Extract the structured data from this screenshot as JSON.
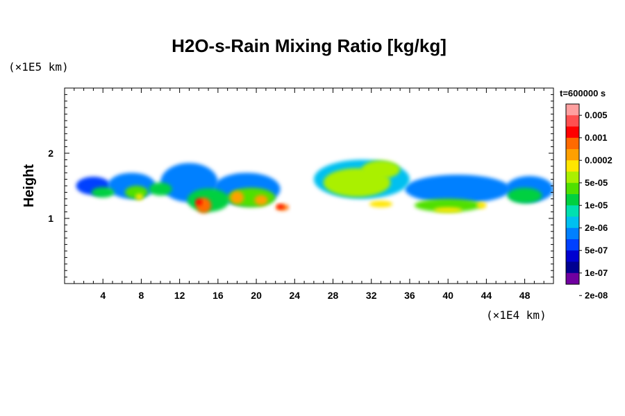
{
  "chart_data": {
    "type": "heatmap",
    "title": "H2O-s-Rain Mixing Ratio [kg/kg]",
    "ylabel": "Height",
    "x_unit": "(×1E4 km)",
    "y_unit": "(×1E5 km)",
    "time_label": "t=600000 s",
    "xlim": [
      0,
      51
    ],
    "ylim": [
      0,
      3
    ],
    "x_ticks": [
      4,
      8,
      12,
      16,
      20,
      24,
      28,
      32,
      36,
      40,
      44,
      48
    ],
    "x_tick_labels": [
      "4",
      "8",
      "12",
      "16",
      "20",
      "24",
      "28",
      "32",
      "36",
      "40",
      "44",
      "48"
    ],
    "y_ticks": [
      1,
      2
    ],
    "y_tick_labels": [
      "1",
      "2"
    ],
    "colorbar": {
      "colors": [
        "#ffa0a0",
        "#ff5050",
        "#ff0000",
        "#ff6a00",
        "#ffa000",
        "#ffe600",
        "#aaf000",
        "#50e000",
        "#00d040",
        "#00e0b0",
        "#00c0f0",
        "#0080ff",
        "#0040ff",
        "#0000d0",
        "#000090",
        "#7000a0"
      ],
      "labels": [
        "0.005",
        "0.001",
        "0.0002",
        "5e-05",
        "1e-05",
        "2e-06",
        "5e-07",
        "1e-07",
        "2e-08"
      ]
    },
    "blobs": [
      {
        "x": 3.0,
        "y": 1.5,
        "rx": 1.8,
        "ry": 0.14,
        "level": 3
      },
      {
        "x": 7.0,
        "y": 1.5,
        "rx": 2.5,
        "ry": 0.2,
        "level": 4
      },
      {
        "x": 13.0,
        "y": 1.55,
        "rx": 3.0,
        "ry": 0.3,
        "level": 4
      },
      {
        "x": 19.0,
        "y": 1.45,
        "rx": 3.5,
        "ry": 0.25,
        "level": 4
      },
      {
        "x": 31.0,
        "y": 1.6,
        "rx": 5.0,
        "ry": 0.3,
        "level": 5
      },
      {
        "x": 41.0,
        "y": 1.45,
        "rx": 5.5,
        "ry": 0.22,
        "level": 4
      },
      {
        "x": 48.5,
        "y": 1.45,
        "rx": 2.5,
        "ry": 0.2,
        "level": 4
      },
      {
        "x": 4.0,
        "y": 1.4,
        "rx": 1.2,
        "ry": 0.08,
        "level": 7
      },
      {
        "x": 7.5,
        "y": 1.4,
        "rx": 1.2,
        "ry": 0.1,
        "level": 8
      },
      {
        "x": 10.0,
        "y": 1.45,
        "rx": 1.2,
        "ry": 0.1,
        "level": 7
      },
      {
        "x": 15.0,
        "y": 1.28,
        "rx": 2.2,
        "ry": 0.18,
        "level": 7
      },
      {
        "x": 19.5,
        "y": 1.32,
        "rx": 2.5,
        "ry": 0.15,
        "level": 8
      },
      {
        "x": 30.5,
        "y": 1.55,
        "rx": 3.5,
        "ry": 0.22,
        "level": 9
      },
      {
        "x": 33.0,
        "y": 1.75,
        "rx": 2.0,
        "ry": 0.14,
        "level": 9
      },
      {
        "x": 40.0,
        "y": 1.2,
        "rx": 3.5,
        "ry": 0.1,
        "level": 8
      },
      {
        "x": 48.0,
        "y": 1.35,
        "rx": 1.8,
        "ry": 0.12,
        "level": 7
      },
      {
        "x": 14.5,
        "y": 1.2,
        "rx": 0.8,
        "ry": 0.12,
        "level": 12
      },
      {
        "x": 18.0,
        "y": 1.32,
        "rx": 0.7,
        "ry": 0.1,
        "level": 11
      },
      {
        "x": 20.5,
        "y": 1.28,
        "rx": 0.7,
        "ry": 0.08,
        "level": 11
      },
      {
        "x": 22.7,
        "y": 1.17,
        "rx": 0.7,
        "ry": 0.05,
        "level": 12
      },
      {
        "x": 7.8,
        "y": 1.33,
        "rx": 0.4,
        "ry": 0.05,
        "level": 10
      },
      {
        "x": 33.0,
        "y": 1.22,
        "rx": 1.2,
        "ry": 0.05,
        "level": 10
      },
      {
        "x": 40.0,
        "y": 1.13,
        "rx": 1.5,
        "ry": 0.04,
        "level": 10
      },
      {
        "x": 43.5,
        "y": 1.2,
        "rx": 0.5,
        "ry": 0.05,
        "level": 10
      }
    ],
    "cores": [
      {
        "x": 14.0,
        "y": 1.25,
        "rx": 0.35,
        "ry": 0.05,
        "level": 13
      },
      {
        "x": 22.5,
        "y": 1.18,
        "rx": 0.35,
        "ry": 0.03,
        "level": 13
      }
    ]
  }
}
